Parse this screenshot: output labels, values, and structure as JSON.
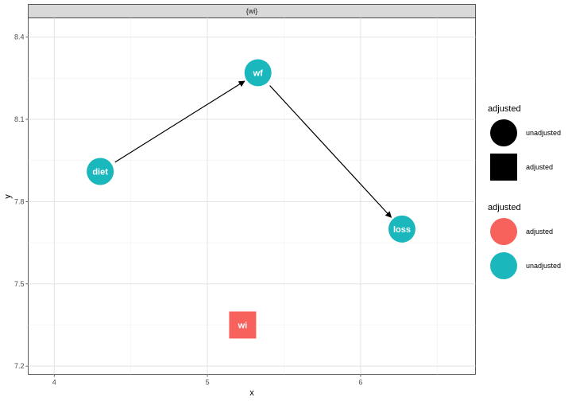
{
  "chart_data": {
    "type": "scatter",
    "facet_strip": "{wi}",
    "xlabel": "x",
    "ylabel": "y",
    "xlim": [
      3.83,
      6.75
    ],
    "ylim": [
      7.17,
      8.47
    ],
    "x_ticks": [
      4,
      5,
      6
    ],
    "x_tick_labels": [
      "4",
      "5",
      "6"
    ],
    "y_ticks": [
      7.2,
      7.5,
      7.8,
      8.1,
      8.4
    ],
    "y_tick_labels": [
      "7.2",
      "7.5",
      "7.8",
      "8.1",
      "8.4"
    ],
    "grid": true,
    "nodes": [
      {
        "name": "diet",
        "x": 4.3,
        "y": 7.91,
        "shape": "circle",
        "adjusted": "unadjusted",
        "color": "#1ab7bd"
      },
      {
        "name": "wf",
        "x": 5.33,
        "y": 8.27,
        "shape": "circle",
        "adjusted": "unadjusted",
        "color": "#1ab7bd"
      },
      {
        "name": "loss",
        "x": 6.27,
        "y": 7.7,
        "shape": "circle",
        "adjusted": "unadjusted",
        "color": "#1ab7bd"
      },
      {
        "name": "wi",
        "x": 5.23,
        "y": 7.35,
        "shape": "square",
        "adjusted": "adjusted",
        "color": "#f8625d"
      }
    ],
    "edges": [
      {
        "from": "diet",
        "to": "wf"
      },
      {
        "from": "wf",
        "to": "loss"
      }
    ],
    "legends": [
      {
        "title": "adjusted",
        "kind": "shape",
        "entries": [
          {
            "label": "unadjusted",
            "shape": "circle"
          },
          {
            "label": "adjusted",
            "shape": "square"
          }
        ]
      },
      {
        "title": "adjusted",
        "kind": "color",
        "entries": [
          {
            "label": "adjusted",
            "color": "#f8625d"
          },
          {
            "label": "unadjusted",
            "color": "#1ab7bd"
          }
        ]
      }
    ],
    "legend_position": "right"
  }
}
